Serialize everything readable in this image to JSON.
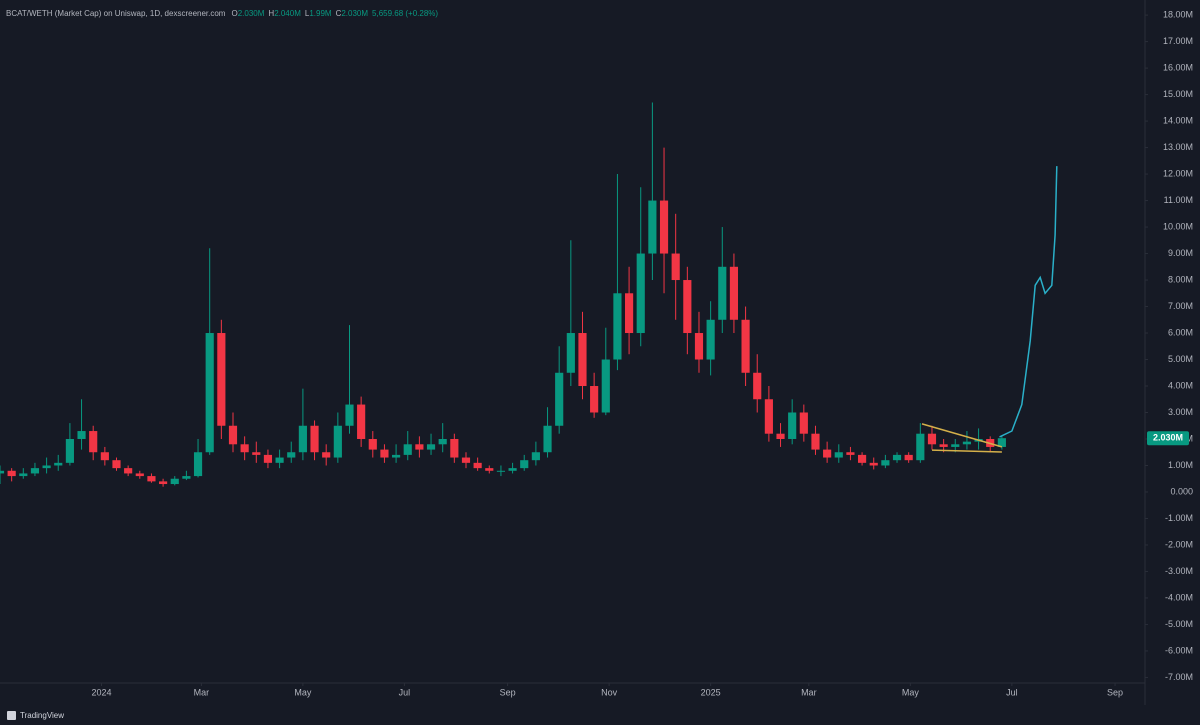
{
  "chart_data": {
    "type": "candlestick",
    "title": "BCAT/WETH (Market Cap) on Uniswap, 1D, dexscreener.com",
    "ohlc_legend": [
      {
        "key": "O",
        "text": "2.030M"
      },
      {
        "key": "H",
        "text": "2.040M"
      },
      {
        "key": "L",
        "text": "1.99M"
      },
      {
        "key": "C",
        "text": "2.030M"
      }
    ],
    "change": "5,659.68 (+0.28%)",
    "last_price": {
      "value": 2.03,
      "label": "2.030M"
    },
    "brand": "TradingView",
    "up_color": "#089981",
    "down_color": "#f23645",
    "xlim": [
      0,
      688
    ],
    "ylim": [
      -7.21,
      18.57
    ],
    "xticks": [
      {
        "value": 61,
        "label": "2024"
      },
      {
        "value": 121,
        "label": "Mar"
      },
      {
        "value": 182,
        "label": "May"
      },
      {
        "value": 243,
        "label": "Jul"
      },
      {
        "value": 305,
        "label": "Sep"
      },
      {
        "value": 366,
        "label": "Nov"
      },
      {
        "value": 427,
        "label": "2025"
      },
      {
        "value": 486,
        "label": "Mar"
      },
      {
        "value": 547,
        "label": "May"
      },
      {
        "value": 608,
        "label": "Jul"
      },
      {
        "value": 670,
        "label": "Sep"
      }
    ],
    "yticks": [
      {
        "value": 18,
        "label": "18.00M"
      },
      {
        "value": 17,
        "label": "17.00M"
      },
      {
        "value": 16,
        "label": "16.00M"
      },
      {
        "value": 15,
        "label": "15.00M"
      },
      {
        "value": 14,
        "label": "14.00M"
      },
      {
        "value": 13,
        "label": "13.00M"
      },
      {
        "value": 12,
        "label": "12.00M"
      },
      {
        "value": 11,
        "label": "11.00M"
      },
      {
        "value": 10,
        "label": "10.00M"
      },
      {
        "value": 9,
        "label": "9.00M"
      },
      {
        "value": 8,
        "label": "8.00M"
      },
      {
        "value": 7,
        "label": "7.00M"
      },
      {
        "value": 6,
        "label": "6.00M"
      },
      {
        "value": 5,
        "label": "5.00M"
      },
      {
        "value": 4,
        "label": "4.00M"
      },
      {
        "value": 3,
        "label": "3.00M"
      },
      {
        "value": 2,
        "label": "2.00M"
      },
      {
        "value": 1,
        "label": "1.00M"
      },
      {
        "value": 0,
        "label": "0.000"
      },
      {
        "value": -1,
        "label": "-1.00M"
      },
      {
        "value": -2,
        "label": "-2.00M"
      },
      {
        "value": -3,
        "label": "-3.00M"
      },
      {
        "value": -4,
        "label": "-4.00M"
      },
      {
        "value": -5,
        "label": "-5.00M"
      },
      {
        "value": -6,
        "label": "-6.00M"
      },
      {
        "value": -7,
        "label": "-7.00M"
      }
    ],
    "x": [
      0,
      7,
      14,
      21,
      28,
      35,
      42,
      49,
      56,
      63,
      70,
      77,
      84,
      91,
      98,
      105,
      112,
      119,
      126,
      133,
      140,
      147,
      154,
      161,
      168,
      175,
      182,
      189,
      196,
      203,
      210,
      217,
      224,
      231,
      238,
      245,
      252,
      259,
      266,
      273,
      280,
      287,
      294,
      301,
      308,
      315,
      322,
      329,
      336,
      343,
      350,
      357,
      364,
      371,
      378,
      385,
      392,
      399,
      406,
      413,
      420,
      427,
      434,
      441,
      448,
      455,
      462,
      469,
      476,
      483,
      490,
      497,
      504,
      511,
      518,
      525,
      532,
      539,
      546,
      553,
      560,
      567,
      574,
      581,
      588,
      595,
      602
    ],
    "open": [
      0.7,
      0.8,
      0.6,
      0.7,
      0.9,
      1.0,
      1.1,
      2.0,
      2.3,
      1.5,
      1.2,
      0.9,
      0.7,
      0.6,
      0.4,
      0.3,
      0.5,
      0.6,
      1.5,
      6.0,
      2.5,
      1.8,
      1.5,
      1.4,
      1.1,
      1.3,
      1.5,
      2.5,
      1.5,
      1.3,
      2.5,
      3.3,
      2.0,
      1.6,
      1.3,
      1.4,
      1.8,
      1.6,
      1.8,
      2.0,
      1.3,
      1.1,
      0.9,
      0.8,
      0.8,
      0.9,
      1.2,
      1.5,
      2.5,
      4.5,
      6.0,
      4.0,
      3.0,
      5.0,
      7.5,
      6.0,
      9.0,
      11.0,
      9.0,
      8.0,
      6.0,
      5.0,
      6.5,
      8.5,
      6.5,
      4.5,
      3.5,
      2.2,
      2.0,
      3.0,
      2.2,
      1.6,
      1.3,
      1.5,
      1.4,
      1.1,
      1.0,
      1.2,
      1.4,
      1.2,
      2.2,
      1.8,
      1.7,
      1.8,
      1.9,
      2.0,
      1.7
    ],
    "high": [
      1.0,
      0.9,
      0.9,
      1.1,
      1.3,
      1.4,
      2.6,
      3.5,
      2.5,
      1.7,
      1.3,
      1.0,
      0.8,
      0.7,
      0.5,
      0.6,
      0.8,
      2.0,
      9.2,
      6.5,
      3.0,
      2.1,
      1.9,
      1.6,
      1.6,
      1.9,
      3.9,
      2.7,
      1.8,
      3.0,
      6.3,
      3.6,
      2.3,
      1.8,
      1.8,
      2.3,
      2.1,
      2.2,
      2.6,
      2.2,
      1.5,
      1.3,
      1.0,
      1.0,
      1.1,
      1.4,
      1.9,
      3.2,
      5.5,
      9.5,
      6.8,
      4.5,
      6.2,
      12.0,
      8.5,
      11.5,
      14.7,
      13.0,
      10.5,
      8.5,
      6.8,
      7.2,
      10.0,
      9.0,
      7.0,
      5.2,
      4.0,
      2.6,
      3.5,
      3.3,
      2.5,
      1.9,
      1.8,
      1.7,
      1.5,
      1.3,
      1.4,
      1.5,
      1.5,
      2.6,
      2.5,
      2.0,
      2.0,
      2.3,
      2.4,
      2.1,
      2.1
    ],
    "low": [
      0.3,
      0.4,
      0.5,
      0.6,
      0.7,
      0.8,
      1.0,
      1.6,
      1.2,
      1.0,
      0.8,
      0.6,
      0.5,
      0.35,
      0.2,
      0.25,
      0.45,
      0.55,
      1.4,
      2.0,
      1.5,
      1.2,
      1.1,
      0.9,
      0.9,
      1.1,
      1.2,
      1.2,
      1.0,
      1.1,
      2.2,
      1.7,
      1.3,
      1.1,
      1.1,
      1.2,
      1.3,
      1.4,
      1.5,
      1.1,
      0.9,
      0.8,
      0.7,
      0.6,
      0.7,
      0.8,
      1.0,
      1.3,
      2.2,
      4.0,
      3.5,
      2.8,
      2.9,
      4.6,
      5.2,
      5.5,
      8.0,
      7.5,
      6.5,
      5.2,
      4.5,
      4.4,
      6.0,
      6.0,
      4.0,
      3.0,
      1.9,
      1.7,
      1.8,
      1.9,
      1.4,
      1.1,
      1.1,
      1.2,
      1.0,
      0.85,
      0.9,
      1.1,
      1.1,
      1.1,
      1.6,
      1.5,
      1.5,
      1.6,
      1.6,
      1.5,
      1.6
    ],
    "close": [
      0.8,
      0.6,
      0.7,
      0.9,
      1.0,
      1.1,
      2.0,
      2.3,
      1.5,
      1.2,
      0.9,
      0.7,
      0.6,
      0.4,
      0.3,
      0.5,
      0.6,
      1.5,
      6.0,
      2.5,
      1.8,
      1.5,
      1.4,
      1.1,
      1.3,
      1.5,
      2.5,
      1.5,
      1.3,
      2.5,
      3.3,
      2.0,
      1.6,
      1.3,
      1.4,
      1.8,
      1.6,
      1.8,
      2.0,
      1.3,
      1.1,
      0.9,
      0.8,
      0.8,
      0.9,
      1.2,
      1.5,
      2.5,
      4.5,
      6.0,
      4.0,
      3.0,
      5.0,
      7.5,
      6.0,
      9.0,
      11.0,
      9.0,
      8.0,
      6.0,
      5.0,
      6.5,
      8.5,
      6.5,
      4.5,
      3.5,
      2.2,
      2.0,
      3.0,
      2.2,
      1.6,
      1.3,
      1.5,
      1.4,
      1.1,
      1.0,
      1.2,
      1.4,
      1.2,
      2.2,
      1.8,
      1.7,
      1.8,
      1.9,
      2.0,
      1.7,
      2.03
    ],
    "drawings": [
      {
        "color": "#2ab0c9",
        "x": [
          600.6,
          608,
          614,
          619,
          622,
          625,
          628,
          632,
          634,
          635
        ],
        "values": [
          2.08,
          2.3,
          3.3,
          5.7,
          7.8,
          8.1,
          7.5,
          7.8,
          9.7,
          12.3
        ]
      },
      {
        "color": "#d4b04a",
        "x": [
          554,
          602
        ],
        "values": [
          2.57,
          1.7
        ]
      },
      {
        "color": "#d4b04a",
        "x": [
          560,
          602
        ],
        "values": [
          1.58,
          1.51
        ]
      }
    ]
  }
}
